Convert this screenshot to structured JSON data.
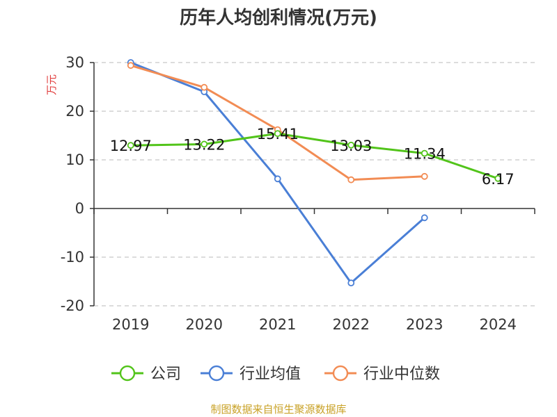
{
  "colors": {
    "company": "#52c41a",
    "industry_avg": "#4a7fd6",
    "industry_median": "#f28c54",
    "source": "#c9a227",
    "ylabel": "#e03c3c"
  },
  "chart_data": {
    "type": "line",
    "title": "历年人均创利情况(万元)",
    "ylabel": "万元",
    "xlabel": "",
    "categories": [
      "2019",
      "2020",
      "2021",
      "2022",
      "2023",
      "2024"
    ],
    "ylim": [
      -20,
      30
    ],
    "yticks": [
      30,
      20,
      10,
      0,
      -10,
      -20
    ],
    "grid": true,
    "legend_position": "bottom",
    "series": [
      {
        "name": "公司",
        "color": "#52c41a",
        "values": [
          12.97,
          13.22,
          15.41,
          13.03,
          11.34,
          6.17
        ],
        "labels": [
          "12.97",
          "13.22",
          "15.41",
          "13.03",
          "11.34",
          "6.17"
        ]
      },
      {
        "name": "行业均值",
        "color": "#4a7fd6",
        "values": [
          30.0,
          24.0,
          6.1,
          -15.3,
          -1.9,
          null
        ]
      },
      {
        "name": "行业中位数",
        "color": "#f28c54",
        "values": [
          29.4,
          24.9,
          16.2,
          5.9,
          6.6,
          null
        ]
      }
    ]
  },
  "source_note": "制图数据来自恒生聚源数据库"
}
